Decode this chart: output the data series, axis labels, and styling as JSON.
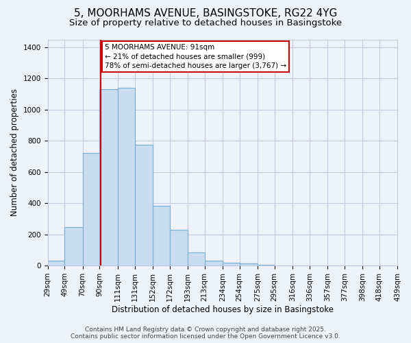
{
  "title": "5, MOORHAMS AVENUE, BASINGSTOKE, RG22 4YG",
  "subtitle": "Size of property relative to detached houses in Basingstoke",
  "xlabel": "Distribution of detached houses by size in Basingstoke",
  "ylabel": "Number of detached properties",
  "bar_values": [
    30,
    245,
    720,
    1130,
    1140,
    775,
    385,
    230,
    85,
    30,
    20,
    15,
    5,
    0,
    0,
    0,
    0,
    0,
    0,
    0
  ],
  "bin_edges": [
    29,
    49,
    70,
    90,
    111,
    131,
    152,
    172,
    193,
    213,
    234,
    254,
    275,
    295,
    316,
    336,
    357,
    377,
    398,
    418,
    439
  ],
  "bar_color": "#c9dcf0",
  "bar_edge_color": "#7aadd4",
  "vline_x": 91,
  "vline_color": "#cc0000",
  "ylim": [
    0,
    1450
  ],
  "yticks": [
    0,
    200,
    400,
    600,
    800,
    1000,
    1200,
    1400
  ],
  "annotation_box_color": "#ffffff",
  "annotation_box_edge": "#cc0000",
  "footer1": "Contains HM Land Registry data © Crown copyright and database right 2025.",
  "footer2": "Contains public sector information licensed under the Open Government Licence v3.0.",
  "bg_color": "#eef2fb",
  "plot_bg_color": "#eef2fb",
  "grid_color": "#c0ccdf",
  "title_fontsize": 11,
  "subtitle_fontsize": 9.5,
  "axis_label_fontsize": 8.5,
  "tick_fontsize": 7.5,
  "footer_fontsize": 6.5
}
